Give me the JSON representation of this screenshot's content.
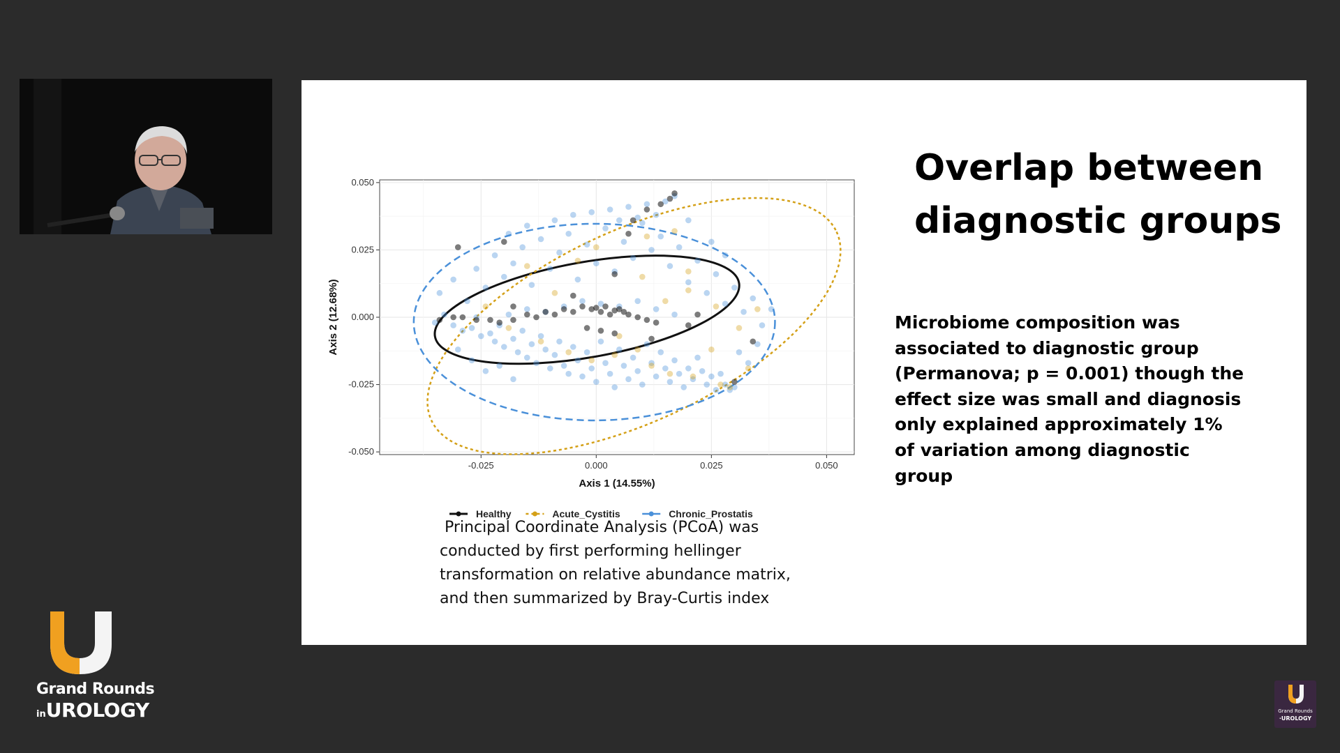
{
  "slide": {
    "title_lines": [
      "Overlap between",
      "diagnostic groups"
    ],
    "summary_lines": [
      "Microbiome composition was",
      "associated to diagnostic group",
      "(Permanova; p = 0.001) though the",
      "effect size was small and diagnosis",
      "only explained approximately 1%",
      "of variation among diagnostic",
      "group"
    ],
    "caption_lines": [
      " Principal Coordinate Analysis (PCoA) was",
      "conducted by first performing hellinger",
      "transformation on relative abundance matrix,",
      "and then summarized by Bray-Curtis index"
    ]
  },
  "branding": {
    "line1": "Grand Rounds",
    "in": "in",
    "urology": "UROLOGY",
    "mini_line1": "Grand Rounds",
    "mini_line2": "·UROLOGY",
    "accent_color": "#f0a020"
  },
  "chart_data": {
    "type": "scatter",
    "title": "",
    "xlabel": "Axis 1 (14.55%)",
    "ylabel": "Axis 2 (12.68%)",
    "xlim": [
      -0.047,
      0.056
    ],
    "ylim": [
      -0.051,
      0.051
    ],
    "x_ticks": [
      -0.025,
      0.0,
      0.025,
      0.05
    ],
    "x_tick_labels": [
      "-0.025",
      "0.000",
      "0.025",
      "0.050"
    ],
    "y_ticks": [
      0.05,
      0.025,
      0.0,
      -0.025,
      -0.05
    ],
    "y_tick_labels": [
      "0.050",
      "0.025",
      "0.000",
      "-0.025",
      "-0.050"
    ],
    "grid": true,
    "legend_position": "bottom",
    "series": [
      {
        "name": "Healthy",
        "color": "#111111",
        "ellipse_style": "solid",
        "ellipse": {
          "center": [
            -0.002,
            0.0028
          ],
          "radii": [
            0.0335,
            0.0177
          ],
          "angle_deg": 10
        },
        "points": [
          [
            -0.034,
            -0.001
          ],
          [
            -0.031,
            0.0
          ],
          [
            -0.029,
            0.0
          ],
          [
            -0.026,
            -0.001
          ],
          [
            -0.023,
            -0.001
          ],
          [
            -0.021,
            -0.002
          ],
          [
            -0.018,
            -0.001
          ],
          [
            -0.015,
            0.001
          ],
          [
            -0.013,
            0.0
          ],
          [
            -0.011,
            0.002
          ],
          [
            -0.009,
            0.001
          ],
          [
            -0.007,
            0.003
          ],
          [
            -0.005,
            0.002
          ],
          [
            -0.003,
            0.004
          ],
          [
            -0.001,
            0.003
          ],
          [
            0.0,
            0.0035
          ],
          [
            0.001,
            0.002
          ],
          [
            0.002,
            0.004
          ],
          [
            0.003,
            0.001
          ],
          [
            0.004,
            0.0025
          ],
          [
            0.005,
            0.003
          ],
          [
            0.006,
            0.002
          ],
          [
            0.007,
            0.001
          ],
          [
            0.009,
            0.0
          ],
          [
            0.011,
            -0.001
          ],
          [
            0.013,
            -0.002
          ],
          [
            -0.002,
            -0.004
          ],
          [
            0.001,
            -0.005
          ],
          [
            0.004,
            -0.006
          ],
          [
            0.012,
            -0.008
          ],
          [
            0.016,
            0.044
          ],
          [
            0.017,
            0.046
          ],
          [
            0.014,
            0.042
          ],
          [
            0.011,
            0.04
          ],
          [
            0.008,
            0.036
          ],
          [
            0.007,
            0.031
          ],
          [
            0.004,
            0.016
          ],
          [
            -0.005,
            0.008
          ],
          [
            -0.018,
            0.004
          ],
          [
            -0.03,
            0.026
          ],
          [
            0.02,
            -0.003
          ],
          [
            0.022,
            0.001
          ],
          [
            0.034,
            -0.009
          ],
          [
            0.03,
            -0.024
          ],
          [
            -0.02,
            0.028
          ]
        ]
      },
      {
        "name": "Acute_Cystitis",
        "color": "#d4a017",
        "ellipse_style": "dotted",
        "ellipse": {
          "center": [
            0.0082,
            -0.0033
          ],
          "radii": [
            0.0485,
            0.0355
          ],
          "angle_deg": 25
        },
        "points": [
          [
            -0.024,
            0.004
          ],
          [
            -0.019,
            -0.004
          ],
          [
            -0.012,
            -0.009
          ],
          [
            -0.006,
            -0.013
          ],
          [
            -0.001,
            -0.016
          ],
          [
            0.004,
            -0.014
          ],
          [
            0.009,
            -0.012
          ],
          [
            0.012,
            -0.018
          ],
          [
            0.016,
            -0.021
          ],
          [
            0.021,
            -0.022
          ],
          [
            0.027,
            -0.025
          ],
          [
            0.029,
            -0.026
          ],
          [
            0.015,
            0.006
          ],
          [
            0.02,
            0.01
          ],
          [
            0.026,
            0.004
          ],
          [
            0.031,
            -0.004
          ],
          [
            0.035,
            0.003
          ],
          [
            -0.004,
            0.021
          ],
          [
            0.0,
            0.026
          ],
          [
            0.01,
            0.015
          ],
          [
            0.017,
            0.032
          ],
          [
            0.02,
            0.017
          ],
          [
            0.005,
            -0.007
          ],
          [
            -0.009,
            0.009
          ],
          [
            0.025,
            -0.012
          ],
          [
            0.033,
            -0.019
          ],
          [
            0.011,
            0.03
          ],
          [
            -0.015,
            0.019
          ]
        ]
      },
      {
        "name": "Chronic_Prostatis",
        "color": "#4a90d9",
        "ellipse_style": "dashed",
        "ellipse": {
          "center": [
            -0.0004,
            -0.0018
          ],
          "radii": [
            0.0392,
            0.0365
          ],
          "angle_deg": 0
        },
        "points": [
          [
            -0.035,
            -0.002
          ],
          [
            -0.033,
            0.001
          ],
          [
            -0.031,
            -0.003
          ],
          [
            -0.029,
            -0.005
          ],
          [
            -0.027,
            -0.004
          ],
          [
            -0.026,
            0.0
          ],
          [
            -0.025,
            -0.007
          ],
          [
            -0.023,
            -0.006
          ],
          [
            -0.022,
            -0.009
          ],
          [
            -0.021,
            -0.003
          ],
          [
            -0.02,
            -0.011
          ],
          [
            -0.018,
            -0.008
          ],
          [
            -0.017,
            -0.013
          ],
          [
            -0.016,
            -0.005
          ],
          [
            -0.015,
            -0.015
          ],
          [
            -0.014,
            -0.01
          ],
          [
            -0.013,
            -0.017
          ],
          [
            -0.012,
            -0.007
          ],
          [
            -0.011,
            -0.012
          ],
          [
            -0.01,
            -0.019
          ],
          [
            -0.009,
            -0.014
          ],
          [
            -0.008,
            -0.009
          ],
          [
            -0.007,
            -0.018
          ],
          [
            -0.006,
            -0.021
          ],
          [
            -0.005,
            -0.011
          ],
          [
            -0.004,
            -0.016
          ],
          [
            -0.003,
            -0.022
          ],
          [
            -0.002,
            -0.013
          ],
          [
            -0.001,
            -0.019
          ],
          [
            0.0,
            -0.024
          ],
          [
            0.001,
            -0.009
          ],
          [
            0.002,
            -0.017
          ],
          [
            0.003,
            -0.021
          ],
          [
            0.004,
            -0.026
          ],
          [
            0.005,
            -0.012
          ],
          [
            0.006,
            -0.018
          ],
          [
            0.007,
            -0.023
          ],
          [
            0.008,
            -0.015
          ],
          [
            0.009,
            -0.02
          ],
          [
            0.01,
            -0.025
          ],
          [
            0.011,
            -0.01
          ],
          [
            0.012,
            -0.017
          ],
          [
            0.013,
            -0.022
          ],
          [
            0.014,
            -0.013
          ],
          [
            0.015,
            -0.019
          ],
          [
            0.016,
            -0.024
          ],
          [
            0.017,
            -0.016
          ],
          [
            0.018,
            -0.021
          ],
          [
            0.019,
            -0.026
          ],
          [
            0.02,
            -0.019
          ],
          [
            0.021,
            -0.023
          ],
          [
            0.022,
            -0.015
          ],
          [
            0.023,
            -0.02
          ],
          [
            0.024,
            -0.025
          ],
          [
            0.025,
            -0.022
          ],
          [
            0.026,
            -0.027
          ],
          [
            0.027,
            -0.021
          ],
          [
            0.028,
            -0.025
          ],
          [
            0.029,
            -0.027
          ],
          [
            0.03,
            -0.026
          ],
          [
            -0.034,
            0.009
          ],
          [
            -0.031,
            0.014
          ],
          [
            -0.028,
            0.006
          ],
          [
            -0.026,
            0.018
          ],
          [
            -0.024,
            0.011
          ],
          [
            -0.022,
            0.023
          ],
          [
            -0.02,
            0.015
          ],
          [
            -0.018,
            0.02
          ],
          [
            -0.016,
            0.026
          ],
          [
            -0.014,
            0.012
          ],
          [
            -0.012,
            0.029
          ],
          [
            -0.01,
            0.018
          ],
          [
            -0.008,
            0.024
          ],
          [
            -0.006,
            0.031
          ],
          [
            -0.004,
            0.014
          ],
          [
            -0.002,
            0.027
          ],
          [
            0.0,
            0.02
          ],
          [
            0.002,
            0.033
          ],
          [
            0.004,
            0.017
          ],
          [
            0.006,
            0.028
          ],
          [
            0.008,
            0.022
          ],
          [
            0.01,
            0.035
          ],
          [
            0.012,
            0.025
          ],
          [
            0.014,
            0.03
          ],
          [
            0.016,
            0.019
          ],
          [
            0.018,
            0.026
          ],
          [
            0.02,
            0.013
          ],
          [
            0.022,
            0.021
          ],
          [
            0.024,
            0.009
          ],
          [
            0.026,
            0.016
          ],
          [
            0.028,
            0.005
          ],
          [
            0.03,
            0.011
          ],
          [
            0.032,
            0.002
          ],
          [
            0.034,
            0.007
          ],
          [
            0.036,
            -0.003
          ],
          [
            0.038,
            0.003
          ],
          [
            -0.009,
            0.036
          ],
          [
            -0.005,
            0.038
          ],
          [
            -0.001,
            0.039
          ],
          [
            0.003,
            0.04
          ],
          [
            0.007,
            0.041
          ],
          [
            0.011,
            0.042
          ],
          [
            0.015,
            0.043
          ],
          [
            0.017,
            0.045
          ],
          [
            0.013,
            0.038
          ],
          [
            0.009,
            0.037
          ],
          [
            0.005,
            0.036
          ],
          [
            -0.015,
            0.034
          ],
          [
            -0.019,
            0.031
          ],
          [
            0.02,
            0.036
          ],
          [
            -0.03,
            -0.012
          ],
          [
            -0.027,
            -0.016
          ],
          [
            -0.024,
            -0.02
          ],
          [
            -0.021,
            -0.018
          ],
          [
            -0.018,
            -0.023
          ],
          [
            0.031,
            -0.013
          ],
          [
            0.033,
            -0.017
          ],
          [
            0.035,
            -0.01
          ],
          [
            0.025,
            0.028
          ],
          [
            0.028,
            0.023
          ],
          [
            -0.007,
            0.004
          ],
          [
            -0.003,
            0.006
          ],
          [
            0.001,
            0.005
          ],
          [
            0.005,
            0.004
          ],
          [
            0.009,
            0.006
          ],
          [
            0.013,
            0.003
          ],
          [
            -0.011,
            0.002
          ],
          [
            -0.015,
            0.003
          ],
          [
            -0.019,
            0.001
          ],
          [
            0.017,
            0.001
          ]
        ]
      }
    ]
  }
}
